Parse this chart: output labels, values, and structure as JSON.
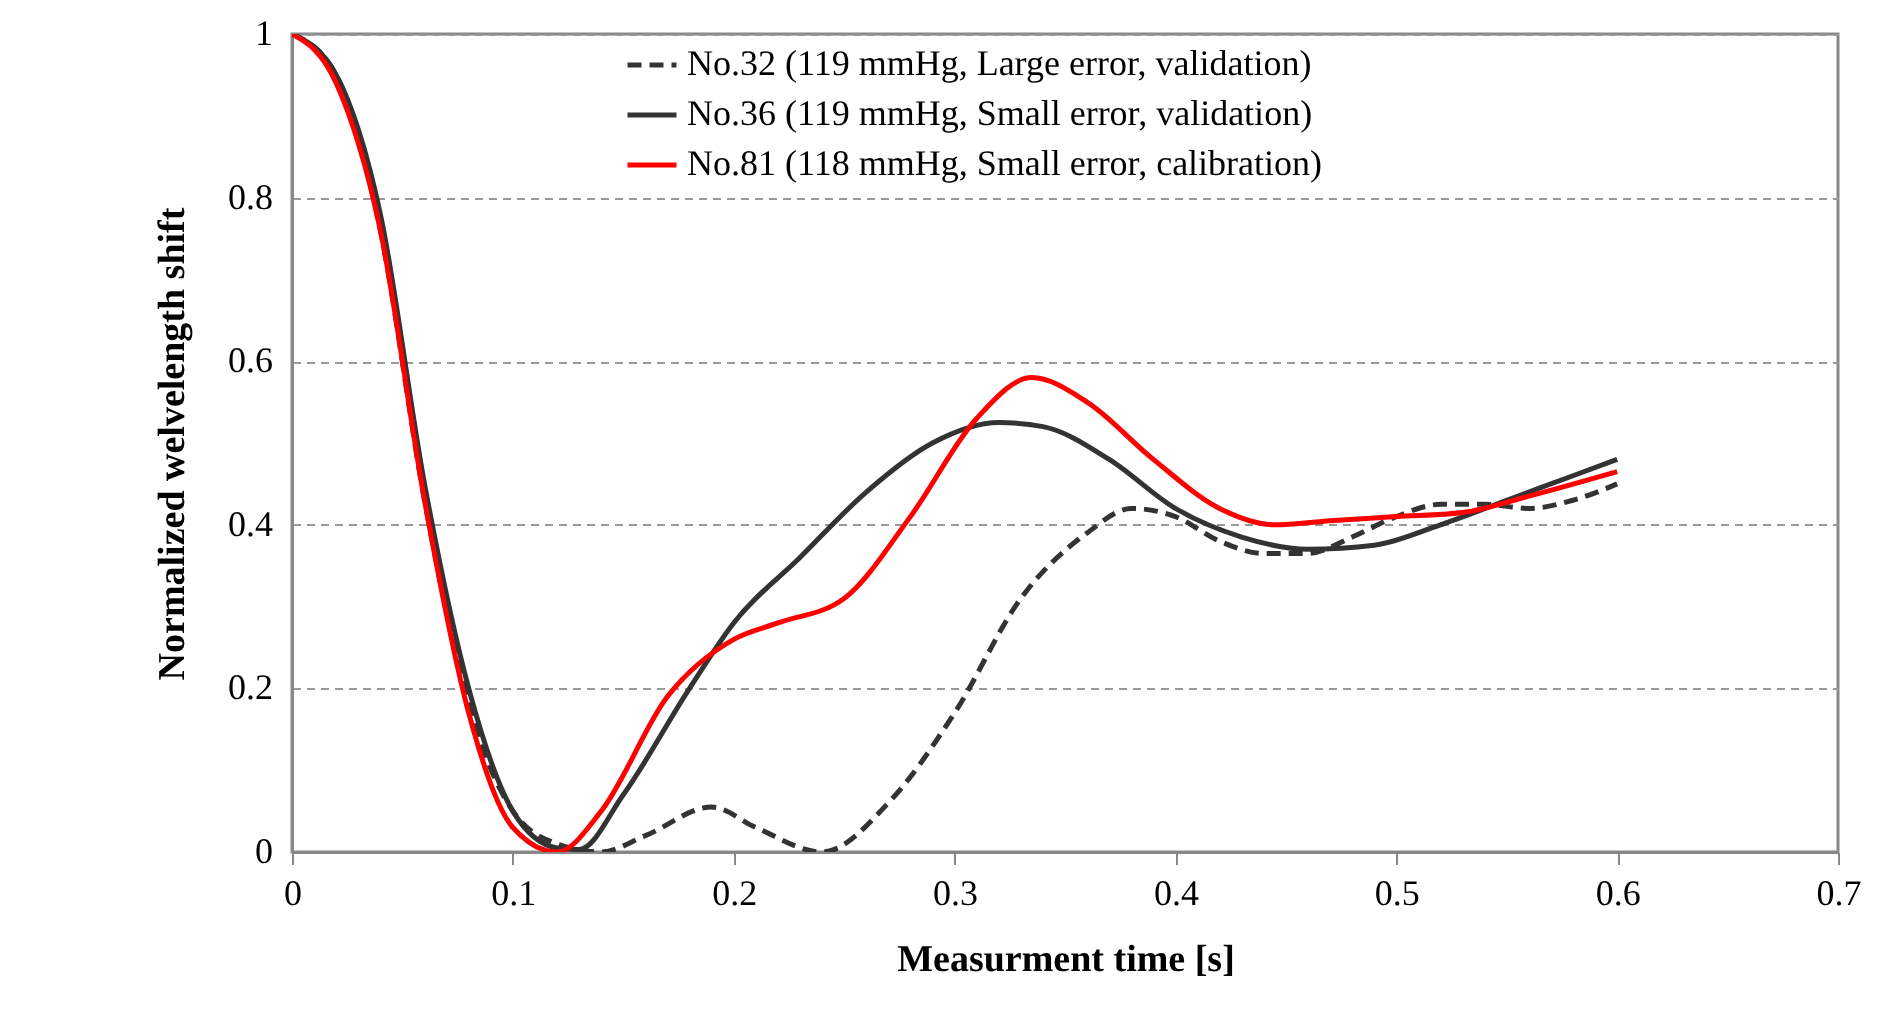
{
  "chart_data": {
    "type": "line",
    "xlabel": "Measurment time [s]",
    "ylabel": "Normalized welvelength shift",
    "xlim": [
      0,
      0.7
    ],
    "xticks": [
      0,
      0.1,
      0.2,
      0.3,
      0.4,
      0.5,
      0.6,
      0.7
    ],
    "ylim": [
      0,
      1
    ],
    "yticks": [
      0,
      0.2,
      0.4,
      0.6,
      0.8,
      1
    ],
    "grid": "y",
    "legend": "top",
    "marker": "none",
    "series": [
      {
        "name": "No.32 (119 mmHg, Large error, validation)",
        "color": "#333333",
        "line_style": "dashed",
        "x": [
          0,
          0.02,
          0.04,
          0.06,
          0.08,
          0.1,
          0.12,
          0.14,
          0.16,
          0.19,
          0.21,
          0.24,
          0.27,
          0.3,
          0.33,
          0.36,
          0.38,
          0.4,
          0.42,
          0.44,
          0.46,
          0.48,
          0.5,
          0.52,
          0.54,
          0.56,
          0.58,
          0.6
        ],
        "values": [
          1,
          0.95,
          0.76,
          0.43,
          0.18,
          0.05,
          0.01,
          0,
          0.02,
          0.055,
          0.03,
          0,
          0.06,
          0.17,
          0.31,
          0.39,
          0.42,
          0.41,
          0.38,
          0.365,
          0.365,
          0.385,
          0.41,
          0.425,
          0.425,
          0.42,
          0.43,
          0.45
        ]
      },
      {
        "name": "No.36 (119 mmHg, Small error, validation)",
        "color": "#333333",
        "line_style": "solid",
        "x": [
          0,
          0.02,
          0.04,
          0.06,
          0.08,
          0.1,
          0.12,
          0.13,
          0.15,
          0.18,
          0.2,
          0.23,
          0.26,
          0.29,
          0.32,
          0.34,
          0.37,
          0.4,
          0.43,
          0.46,
          0.49,
          0.52,
          0.55,
          0.58,
          0.6
        ],
        "values": [
          1,
          0.95,
          0.78,
          0.45,
          0.2,
          0.05,
          0.005,
          0.003,
          0.07,
          0.2,
          0.28,
          0.36,
          0.44,
          0.5,
          0.525,
          0.52,
          0.48,
          0.42,
          0.385,
          0.37,
          0.375,
          0.4,
          0.43,
          0.46,
          0.48
        ]
      },
      {
        "name": "No.81 (118 mmHg, Small error, calibration)",
        "color": "#ff0000",
        "line_style": "solid",
        "x": [
          0,
          0.02,
          0.04,
          0.06,
          0.08,
          0.1,
          0.12,
          0.14,
          0.17,
          0.2,
          0.22,
          0.25,
          0.28,
          0.31,
          0.335,
          0.36,
          0.39,
          0.42,
          0.445,
          0.47,
          0.5,
          0.53,
          0.56,
          0.6
        ],
        "values": [
          1,
          0.94,
          0.76,
          0.43,
          0.17,
          0.03,
          0,
          0.05,
          0.19,
          0.26,
          0.28,
          0.31,
          0.41,
          0.53,
          0.58,
          0.55,
          0.48,
          0.42,
          0.4,
          0.405,
          0.41,
          0.415,
          0.435,
          0.465
        ]
      }
    ]
  }
}
